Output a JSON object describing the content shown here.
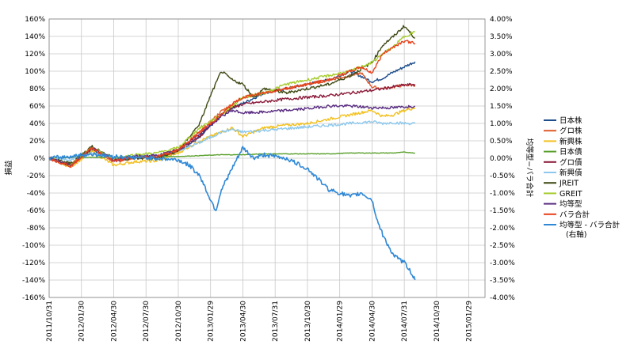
{
  "colors": {
    "grid": "#c8c8c8",
    "axis": "#808080",
    "background": "#ffffff"
  },
  "chart_data": {
    "type": "line",
    "title": "",
    "xlabel": "",
    "ylabel": "損益",
    "y2label": "均等型−バラ合計",
    "ylim": [
      -160,
      160
    ],
    "y2lim": [
      -4.0,
      4.0
    ],
    "yticks": [
      "160%",
      "140%",
      "120%",
      "100%",
      "80%",
      "60%",
      "40%",
      "20%",
      "0%",
      "-20%",
      "-40%",
      "-60%",
      "-80%",
      "-100%",
      "-120%",
      "-140%",
      "-160%"
    ],
    "y2ticks": [
      "4.00%",
      "3.50%",
      "3.00%",
      "2.50%",
      "2.00%",
      "1.50%",
      "1.00%",
      "0.50%",
      "0.00%",
      "-0.50%",
      "-1.00%",
      "-1.50%",
      "-2.00%",
      "-2.50%",
      "-3.00%",
      "-3.50%",
      "-4.00%"
    ],
    "xticks": [
      "2011/10/31",
      "2012/01/30",
      "2012/04/30",
      "2012/07/30",
      "2012/10/30",
      "2013/01/29",
      "2013/04/30",
      "2013/07/31",
      "2013/10/30",
      "2014/01/29",
      "2014/04/30",
      "2014/07/31",
      "2014/10/30",
      "2015/01/29"
    ],
    "legend_position": "right",
    "grid": true,
    "series": [
      {
        "name": "日本株",
        "color": "#1f4e8c",
        "axis": "left",
        "points": [
          [
            0,
            0
          ],
          [
            2,
            -8
          ],
          [
            4,
            10
          ],
          [
            6,
            -2
          ],
          [
            8,
            2
          ],
          [
            10,
            2
          ],
          [
            12,
            8
          ],
          [
            14,
            24
          ],
          [
            16,
            50
          ],
          [
            17,
            58
          ],
          [
            18,
            63
          ],
          [
            20,
            75
          ],
          [
            22,
            80
          ],
          [
            24,
            85
          ],
          [
            26,
            90
          ],
          [
            28,
            100
          ],
          [
            30,
            88
          ],
          [
            31,
            92
          ],
          [
            32,
            99
          ],
          [
            33,
            105
          ],
          [
            34,
            111
          ]
        ]
      },
      {
        "name": "グロ株",
        "color": "#e05a2b",
        "axis": "left",
        "points": [
          [
            0,
            0
          ],
          [
            2,
            -10
          ],
          [
            4,
            12
          ],
          [
            6,
            -4
          ],
          [
            8,
            0
          ],
          [
            10,
            2
          ],
          [
            12,
            10
          ],
          [
            14,
            30
          ],
          [
            16,
            54
          ],
          [
            17,
            62
          ],
          [
            18,
            70
          ],
          [
            20,
            75
          ],
          [
            22,
            80
          ],
          [
            24,
            85
          ],
          [
            26,
            90
          ],
          [
            28,
            95
          ],
          [
            29,
            98
          ],
          [
            30,
            82
          ],
          [
            31,
            80
          ],
          [
            32,
            82
          ],
          [
            33,
            84
          ],
          [
            34,
            84
          ]
        ]
      },
      {
        "name": "新興株",
        "color": "#f2c01e",
        "axis": "left",
        "points": [
          [
            0,
            0
          ],
          [
            2,
            -10
          ],
          [
            4,
            8
          ],
          [
            6,
            -8
          ],
          [
            8,
            -4
          ],
          [
            10,
            -3
          ],
          [
            12,
            6
          ],
          [
            14,
            20
          ],
          [
            16,
            30
          ],
          [
            17,
            35
          ],
          [
            18,
            25
          ],
          [
            20,
            35
          ],
          [
            22,
            38
          ],
          [
            24,
            40
          ],
          [
            26,
            45
          ],
          [
            28,
            50
          ],
          [
            30,
            55
          ],
          [
            31,
            48
          ],
          [
            32,
            50
          ],
          [
            33,
            55
          ],
          [
            34,
            58
          ]
        ]
      },
      {
        "name": "日本債",
        "color": "#5aa02c",
        "axis": "left",
        "points": [
          [
            0,
            0
          ],
          [
            2,
            1
          ],
          [
            4,
            1
          ],
          [
            6,
            1
          ],
          [
            8,
            2
          ],
          [
            10,
            2
          ],
          [
            12,
            2
          ],
          [
            14,
            3
          ],
          [
            16,
            4
          ],
          [
            18,
            4
          ],
          [
            20,
            5
          ],
          [
            22,
            5
          ],
          [
            24,
            5
          ],
          [
            26,
            5
          ],
          [
            28,
            6
          ],
          [
            30,
            6
          ],
          [
            32,
            6
          ],
          [
            33,
            7
          ],
          [
            34,
            6
          ]
        ]
      },
      {
        "name": "グロ債",
        "color": "#8b1a3a",
        "axis": "left",
        "points": [
          [
            0,
            0
          ],
          [
            2,
            -8
          ],
          [
            4,
            12
          ],
          [
            6,
            -2
          ],
          [
            8,
            2
          ],
          [
            10,
            3
          ],
          [
            12,
            10
          ],
          [
            14,
            25
          ],
          [
            16,
            50
          ],
          [
            17,
            58
          ],
          [
            18,
            62
          ],
          [
            20,
            65
          ],
          [
            22,
            68
          ],
          [
            24,
            70
          ],
          [
            26,
            72
          ],
          [
            28,
            75
          ],
          [
            30,
            78
          ],
          [
            31,
            80
          ],
          [
            32,
            82
          ],
          [
            33,
            84
          ],
          [
            34,
            85
          ]
        ]
      },
      {
        "name": "新興債",
        "color": "#8ec8ec",
        "axis": "left",
        "points": [
          [
            0,
            0
          ],
          [
            2,
            -2
          ],
          [
            4,
            6
          ],
          [
            6,
            0
          ],
          [
            8,
            2
          ],
          [
            10,
            3
          ],
          [
            12,
            8
          ],
          [
            14,
            18
          ],
          [
            16,
            30
          ],
          [
            17,
            33
          ],
          [
            18,
            30
          ],
          [
            20,
            32
          ],
          [
            22,
            34
          ],
          [
            24,
            36
          ],
          [
            26,
            38
          ],
          [
            28,
            40
          ],
          [
            30,
            42
          ],
          [
            31,
            40
          ],
          [
            32,
            41
          ],
          [
            33,
            40
          ],
          [
            34,
            40
          ]
        ]
      },
      {
        "name": "JREIT",
        "color": "#3f4a14",
        "axis": "left",
        "points": [
          [
            0,
            0
          ],
          [
            2,
            -6
          ],
          [
            4,
            14
          ],
          [
            6,
            -2
          ],
          [
            8,
            0
          ],
          [
            10,
            0
          ],
          [
            12,
            8
          ],
          [
            14,
            40
          ],
          [
            15,
            72
          ],
          [
            16,
            100
          ],
          [
            17,
            90
          ],
          [
            18,
            85
          ],
          [
            19,
            70
          ],
          [
            20,
            80
          ],
          [
            22,
            75
          ],
          [
            24,
            80
          ],
          [
            26,
            85
          ],
          [
            28,
            95
          ],
          [
            30,
            110
          ],
          [
            31,
            130
          ],
          [
            32,
            140
          ],
          [
            33,
            152
          ],
          [
            34,
            138
          ]
        ]
      },
      {
        "name": "GREIT",
        "color": "#a6cc30",
        "axis": "left",
        "points": [
          [
            0,
            0
          ],
          [
            2,
            -8
          ],
          [
            4,
            12
          ],
          [
            6,
            0
          ],
          [
            8,
            4
          ],
          [
            10,
            6
          ],
          [
            12,
            12
          ],
          [
            14,
            35
          ],
          [
            16,
            50
          ],
          [
            17,
            60
          ],
          [
            18,
            70
          ],
          [
            20,
            75
          ],
          [
            22,
            85
          ],
          [
            24,
            90
          ],
          [
            26,
            95
          ],
          [
            28,
            100
          ],
          [
            30,
            110
          ],
          [
            31,
            120
          ],
          [
            32,
            128
          ],
          [
            33,
            140
          ],
          [
            34,
            145
          ]
        ]
      },
      {
        "name": "均等型",
        "color": "#5a2d82",
        "axis": "left",
        "points": [
          [
            0,
            0
          ],
          [
            2,
            -8
          ],
          [
            4,
            12
          ],
          [
            6,
            -2
          ],
          [
            8,
            2
          ],
          [
            10,
            3
          ],
          [
            12,
            9
          ],
          [
            14,
            28
          ],
          [
            16,
            48
          ],
          [
            17,
            55
          ],
          [
            18,
            52
          ],
          [
            20,
            53
          ],
          [
            22,
            55
          ],
          [
            24,
            57
          ],
          [
            26,
            60
          ],
          [
            28,
            60
          ],
          [
            30,
            58
          ],
          [
            31,
            58
          ],
          [
            32,
            58
          ],
          [
            33,
            59
          ],
          [
            34,
            60
          ]
        ]
      },
      {
        "name": "バラ合計",
        "color": "#e8401c",
        "axis": "left",
        "points": [
          [
            0,
            0
          ],
          [
            2,
            -9
          ],
          [
            4,
            12
          ],
          [
            6,
            -3
          ],
          [
            8,
            1
          ],
          [
            10,
            2
          ],
          [
            12,
            9
          ],
          [
            14,
            30
          ],
          [
            16,
            50
          ],
          [
            17,
            62
          ],
          [
            18,
            70
          ],
          [
            20,
            75
          ],
          [
            22,
            80
          ],
          [
            24,
            85
          ],
          [
            26,
            90
          ],
          [
            28,
            100
          ],
          [
            29,
            105
          ],
          [
            30,
            98
          ],
          [
            31,
            120
          ],
          [
            32,
            128
          ],
          [
            33,
            135
          ],
          [
            34,
            132
          ]
        ]
      },
      {
        "name": "均等型 - バラ合計",
        "name2": "(右軸)",
        "color": "#2f88d6",
        "axis": "right",
        "points": [
          [
            0,
            0.0
          ],
          [
            2,
            0.05
          ],
          [
            4,
            0.12
          ],
          [
            6,
            0.05
          ],
          [
            8,
            0.02
          ],
          [
            10,
            0.0
          ],
          [
            12,
            -0.05
          ],
          [
            13,
            -0.2
          ],
          [
            14,
            -0.5
          ],
          [
            15,
            -1.2
          ],
          [
            15.5,
            -1.5
          ],
          [
            16,
            -0.9
          ],
          [
            17,
            -0.3
          ],
          [
            18,
            0.3
          ],
          [
            19,
            0.0
          ],
          [
            20,
            0.1
          ],
          [
            22,
            0.0
          ],
          [
            24,
            -0.3
          ],
          [
            26,
            -0.9
          ],
          [
            28,
            -1.1
          ],
          [
            29,
            -1.0
          ],
          [
            30,
            -1.2
          ],
          [
            30.5,
            -1.8
          ],
          [
            31,
            -2.2
          ],
          [
            32,
            -2.8
          ],
          [
            33,
            -3.0
          ],
          [
            33.5,
            -3.2
          ],
          [
            34,
            -3.5
          ]
        ]
      }
    ]
  }
}
